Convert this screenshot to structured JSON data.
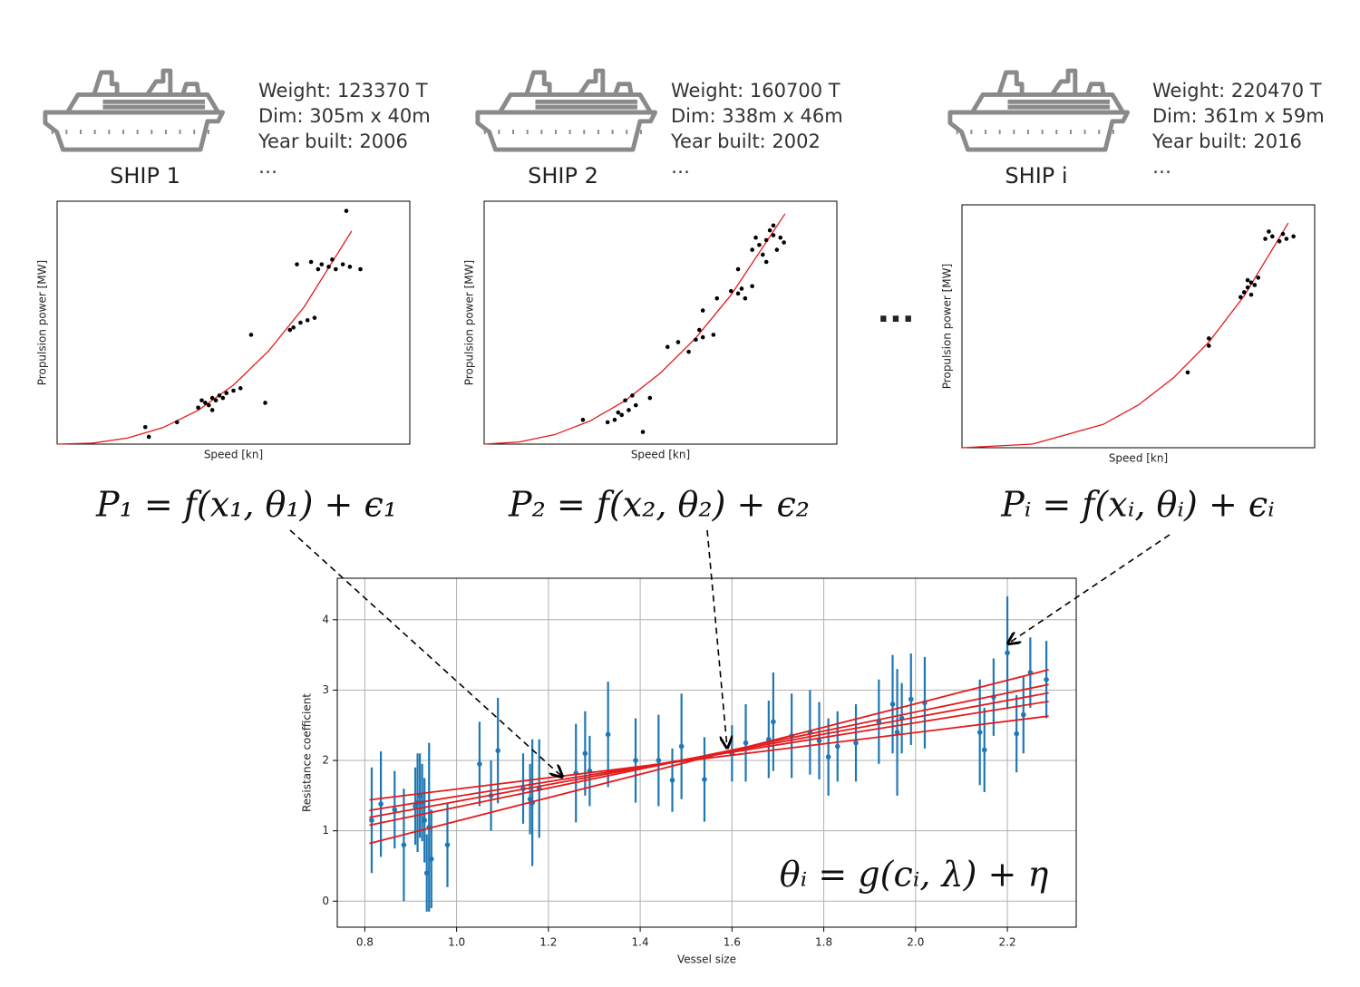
{
  "ships": [
    {
      "name": "SHIP 1",
      "details": [
        "Weight: 123370 T",
        "Dim: 305m x 40m",
        "Year built: 2006",
        "…"
      ],
      "equation": "P₁ = f(x₁, θ₁) + ϵ₁",
      "chart": {
        "type": "scatter",
        "xlabel": "Speed [kn]",
        "ylabel": "Propulsion power [MW]",
        "xlim": [
          0,
          1
        ],
        "ylim": [
          0,
          1
        ],
        "color": "#000000",
        "x": [
          0.4,
          0.42,
          0.44,
          0.46,
          0.48,
          0.43,
          0.45,
          0.47,
          0.5,
          0.52,
          0.41,
          0.44,
          0.25,
          0.26,
          0.34,
          0.59,
          0.55,
          0.67,
          0.69,
          0.71,
          0.73,
          0.66,
          0.68,
          0.72,
          0.75,
          0.77,
          0.79,
          0.81,
          0.78,
          0.83,
          0.74,
          0.86,
          0.82
        ],
        "values": [
          0.15,
          0.17,
          0.19,
          0.2,
          0.21,
          0.16,
          0.18,
          0.19,
          0.22,
          0.23,
          0.18,
          0.14,
          0.07,
          0.03,
          0.09,
          0.17,
          0.45,
          0.48,
          0.5,
          0.51,
          0.52,
          0.47,
          0.74,
          0.75,
          0.74,
          0.73,
          0.72,
          0.74,
          0.76,
          0.73,
          0.72,
          0.72,
          0.96
        ],
        "fit": {
          "color": "#e41a1c",
          "x": [
            0,
            0.1,
            0.2,
            0.3,
            0.4,
            0.5,
            0.6,
            0.7,
            0.835
          ],
          "values": [
            0,
            0.004,
            0.025,
            0.068,
            0.139,
            0.243,
            0.384,
            0.564,
            0.877
          ]
        }
      }
    },
    {
      "name": "SHIP 2",
      "details": [
        "Weight: 160700 T",
        "Dim: 338m x 46m",
        "Year built: 2002",
        "…"
      ],
      "equation": "P₂ = f(x₂, θ₂) + ϵ₂",
      "chart": {
        "type": "scatter",
        "xlabel": "Speed [kn]",
        "ylabel": "Propulsion power [MW]",
        "xlim": [
          0,
          1
        ],
        "ylim": [
          0,
          1
        ],
        "color": "#000000",
        "x": [
          0.35,
          0.37,
          0.39,
          0.41,
          0.43,
          0.4,
          0.42,
          0.38,
          0.28,
          0.45,
          0.47,
          0.52,
          0.55,
          0.6,
          0.62,
          0.65,
          0.58,
          0.61,
          0.62,
          0.66,
          0.7,
          0.72,
          0.73,
          0.74,
          0.76,
          0.72,
          0.76,
          0.78,
          0.8,
          0.82,
          0.84,
          0.79,
          0.81,
          0.83,
          0.77,
          0.85,
          0.8,
          0.82
        ],
        "values": [
          0.09,
          0.1,
          0.12,
          0.14,
          0.16,
          0.18,
          0.2,
          0.13,
          0.1,
          0.05,
          0.19,
          0.4,
          0.42,
          0.43,
          0.44,
          0.45,
          0.38,
          0.47,
          0.55,
          0.6,
          0.63,
          0.62,
          0.64,
          0.6,
          0.65,
          0.72,
          0.8,
          0.82,
          0.84,
          0.86,
          0.85,
          0.78,
          0.88,
          0.8,
          0.85,
          0.83,
          0.75,
          0.9
        ],
        "fit": {
          "color": "#e41a1c",
          "x": [
            0,
            0.1,
            0.2,
            0.3,
            0.4,
            0.5,
            0.6,
            0.7,
            0.853
          ],
          "values": [
            0,
            0.009,
            0.039,
            0.095,
            0.179,
            0.293,
            0.437,
            0.614,
            0.948
          ]
        }
      }
    },
    {
      "name": "SHIP i",
      "details": [
        "Weight: 220470 T",
        "Dim: 361m x 59m",
        "Year built: 2016",
        "…"
      ],
      "equation": "Pᵢ = f(xᵢ, θᵢ) + ϵᵢ",
      "chart": {
        "type": "scatter",
        "xlabel": "Speed [kn]",
        "ylabel": "Propulsion power [MW]",
        "xlim": [
          0,
          1
        ],
        "ylim": [
          0,
          1
        ],
        "color": "#000000",
        "x": [
          0.64,
          0.7,
          0.7,
          0.79,
          0.8,
          0.81,
          0.82,
          0.83,
          0.82,
          0.84,
          0.81,
          0.86,
          0.88,
          0.9,
          0.92,
          0.94,
          0.87,
          0.91
        ],
        "values": [
          0.31,
          0.42,
          0.45,
          0.62,
          0.64,
          0.66,
          0.68,
          0.67,
          0.63,
          0.7,
          0.69,
          0.86,
          0.87,
          0.85,
          0.86,
          0.87,
          0.89,
          0.88
        ],
        "fit": {
          "color": "#e41a1c",
          "x": [
            0,
            0.2,
            0.4,
            0.5,
            0.6,
            0.7,
            0.8,
            0.925
          ],
          "values": [
            0,
            0.015,
            0.096,
            0.176,
            0.288,
            0.435,
            0.625,
            0.925
          ]
        }
      }
    }
  ],
  "dots": "...",
  "bottom_equation": "θᵢ = g(cᵢ, λ) + η",
  "chart_data": {
    "type": "errorbar",
    "xlabel": "Vessel size",
    "ylabel": "Resistance coefficient",
    "xlim": [
      0.74,
      2.35
    ],
    "ylim": [
      -0.37,
      4.59
    ],
    "xticks": [
      0.8,
      {
        "value": 1,
        "label": "1.0"
      },
      1.2,
      1.4,
      1.6,
      1.8,
      {
        "value": 2,
        "label": "2.0"
      },
      2.2
    ],
    "yticks": [
      0,
      1,
      2,
      3,
      4
    ],
    "grid": true,
    "color": "#1f77b4",
    "x": [
      0.815,
      0.835,
      0.865,
      0.885,
      0.91,
      0.915,
      0.92,
      0.925,
      0.93,
      0.935,
      0.94,
      0.945,
      0.98,
      1.05,
      1.075,
      1.09,
      1.145,
      1.16,
      1.165,
      1.18,
      1.26,
      1.28,
      1.29,
      1.33,
      1.39,
      1.44,
      1.47,
      1.49,
      1.54,
      1.6,
      1.63,
      1.68,
      1.69,
      1.73,
      1.77,
      1.79,
      1.81,
      1.83,
      1.87,
      1.92,
      1.95,
      1.96,
      1.97,
      1.99,
      2.02,
      2.14,
      2.15,
      2.17,
      2.2,
      2.22,
      2.235,
      2.25,
      2.285
    ],
    "values": [
      1.15,
      1.38,
      1.3,
      0.8,
      1.35,
      1.4,
      1.5,
      1.4,
      1.15,
      0.4,
      1.05,
      0.6,
      0.8,
      1.95,
      1.5,
      2.14,
      1.6,
      1.45,
      1.4,
      1.6,
      1.82,
      2.1,
      1.85,
      2.37,
      2.0,
      2.0,
      1.72,
      2.2,
      1.73,
      2.1,
      2.25,
      2.3,
      2.55,
      2.35,
      2.4,
      2.28,
      2.05,
      2.2,
      2.25,
      2.55,
      2.8,
      2.4,
      2.6,
      2.87,
      2.82,
      2.4,
      2.15,
      2.9,
      3.53,
      2.38,
      2.65,
      3.25,
      3.15
    ],
    "errors": [
      0.75,
      0.75,
      0.55,
      0.8,
      0.55,
      0.7,
      0.6,
      0.55,
      0.6,
      0.55,
      1.2,
      0.7,
      0.6,
      0.6,
      0.5,
      0.75,
      0.5,
      0.5,
      0.9,
      0.7,
      0.7,
      0.6,
      0.5,
      0.75,
      0.6,
      0.65,
      0.45,
      0.75,
      0.6,
      0.4,
      0.55,
      0.55,
      0.7,
      0.6,
      0.6,
      0.55,
      0.55,
      0.5,
      0.55,
      0.6,
      0.7,
      0.9,
      0.5,
      0.65,
      0.65,
      0.75,
      0.6,
      0.55,
      0.8,
      0.55,
      0.55,
      0.5,
      0.55
    ],
    "lines": [
      {
        "color": "#e41a1c",
        "x": [
          0.81,
          2.29
        ],
        "values": [
          0.82,
          3.29
        ]
      },
      {
        "color": "#e41a1c",
        "x": [
          0.81,
          2.29
        ],
        "values": [
          1.08,
          3.08
        ]
      },
      {
        "color": "#e41a1c",
        "x": [
          0.81,
          2.29
        ],
        "values": [
          1.19,
          2.96
        ]
      },
      {
        "color": "#e41a1c",
        "x": [
          0.81,
          2.29
        ],
        "values": [
          1.29,
          2.84
        ]
      },
      {
        "color": "#e41a1c",
        "x": [
          0.81,
          2.29
        ],
        "values": [
          1.44,
          2.63
        ]
      }
    ]
  }
}
